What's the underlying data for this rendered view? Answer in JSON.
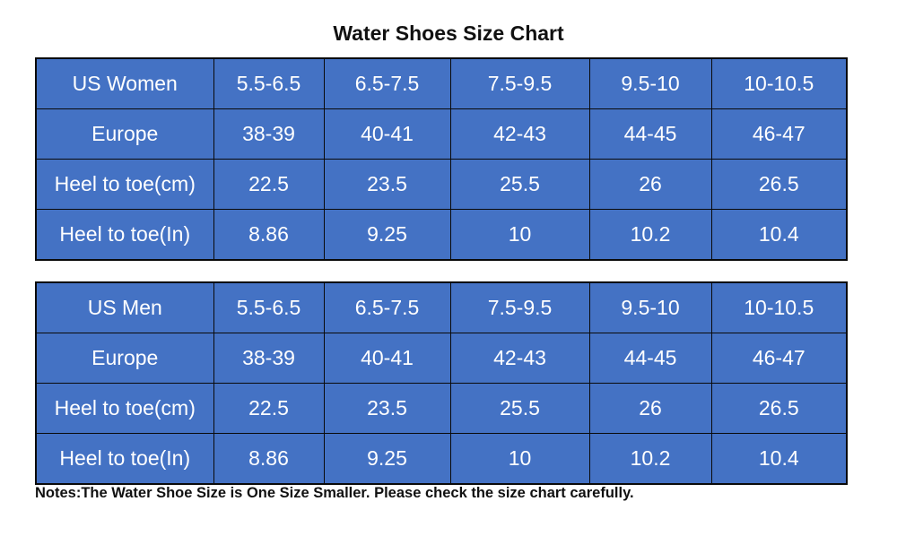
{
  "title": "Water Shoes Size Chart",
  "colors": {
    "cell_bg": "#4472c4",
    "cell_text": "#ffffff",
    "border": "#0a0a0a"
  },
  "women_table": {
    "rows": [
      [
        "US Women",
        "5.5-6.5",
        "6.5-7.5",
        "7.5-9.5",
        "9.5-10",
        "10-10.5"
      ],
      [
        "Europe",
        "38-39",
        "40-41",
        "42-43",
        "44-45",
        "46-47"
      ],
      [
        "Heel to toe(cm)",
        "22.5",
        "23.5",
        "25.5",
        "26",
        "26.5"
      ],
      [
        "Heel to toe(In)",
        "8.86",
        "9.25",
        "10",
        "10.2",
        "10.4"
      ]
    ]
  },
  "men_table": {
    "rows": [
      [
        "US Men",
        "5.5-6.5",
        "6.5-7.5",
        "7.5-9.5",
        "9.5-10",
        "10-10.5"
      ],
      [
        "Europe",
        "38-39",
        "40-41",
        "42-43",
        "44-45",
        "46-47"
      ],
      [
        "Heel to toe(cm)",
        "22.5",
        "23.5",
        "25.5",
        "26",
        "26.5"
      ],
      [
        "Heel to toe(In)",
        "8.86",
        "9.25",
        "10",
        "10.2",
        "10.4"
      ]
    ]
  },
  "notes": "Notes:The Water Shoe Size is One Size Smaller. Please check the size chart carefully."
}
